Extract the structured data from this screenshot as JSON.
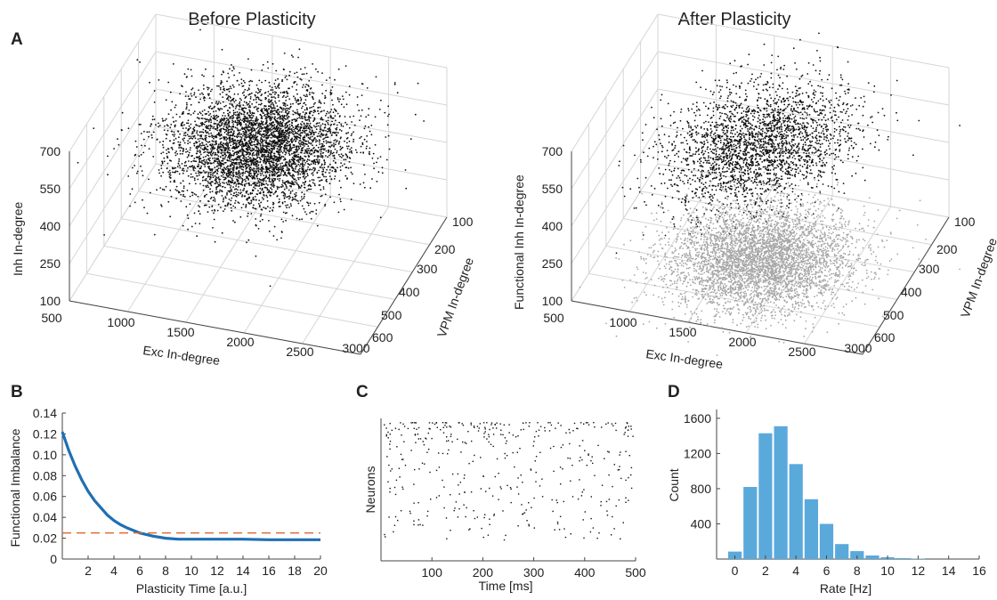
{
  "panels": {
    "A": "A",
    "B": "B",
    "C": "C",
    "D": "D"
  },
  "chart_data": [
    {
      "id": "A-before",
      "type": "scatter",
      "title": "Before Plasticity",
      "xlabel": "Exc In-degree",
      "ylabel": "VPM In-degree",
      "zlabel": "Inh In-degree",
      "x_ticks": [
        "500",
        "1000",
        "1500",
        "2000",
        "2500",
        "3000"
      ],
      "y_ticks": [
        "100",
        "200",
        "300",
        "400",
        "500",
        "600"
      ],
      "z_ticks": [
        "100",
        "250",
        "400",
        "550",
        "700"
      ],
      "xlim": [
        500,
        3000
      ],
      "ylim": [
        100,
        600
      ],
      "zlim": [
        100,
        700
      ],
      "grid": true,
      "series": [
        {
          "color": "#111111",
          "points": 4500,
          "center": [
            1750,
            350,
            550
          ],
          "spread": [
            370,
            95,
            55
          ]
        }
      ]
    },
    {
      "id": "A-after",
      "type": "scatter",
      "title": "After Plasticity",
      "xlabel": "Exc In-degree",
      "ylabel": "VPM In-degree",
      "zlabel": "Functional Inh In-degree",
      "x_ticks": [
        "500",
        "1000",
        "1500",
        "2000",
        "2500"
      ],
      "x_tick_end": "3000",
      "y_ticks": [
        "100",
        "200",
        "300",
        "400",
        "500",
        "600"
      ],
      "z_ticks": [
        "100",
        "250",
        "400",
        "550",
        "700"
      ],
      "xlim": [
        500,
        3000
      ],
      "ylim": [
        100,
        600
      ],
      "zlim": [
        100,
        700
      ],
      "grid": true,
      "series": [
        {
          "color": "#111111",
          "points": 2600,
          "projection": "plane",
          "center": [
            1750,
            350,
            620
          ],
          "spread": [
            370,
            95,
            0
          ]
        },
        {
          "color": "#a6a6a6",
          "points": 4500,
          "projection": "floor",
          "center": [
            1750,
            350,
            100
          ],
          "spread": [
            370,
            95,
            0
          ]
        }
      ]
    },
    {
      "id": "B",
      "type": "line",
      "xlabel": "Plasticity Time [a.u.]",
      "ylabel": "Functional Imbalance",
      "x_ticks": [
        "2",
        "4",
        "6",
        "8",
        "10",
        "12",
        "14",
        "16",
        "18",
        "20"
      ],
      "y_ticks": [
        "0",
        "0.02",
        "0.04",
        "0.06",
        "0.08",
        "0.10",
        "0.12",
        "0.14"
      ],
      "xlim": [
        0,
        20
      ],
      "ylim": [
        0,
        0.14
      ],
      "series": [
        {
          "color": "#1f6fb4",
          "x": [
            0,
            0.5,
            1,
            1.5,
            2,
            2.5,
            3,
            3.5,
            4,
            4.5,
            5,
            6,
            7,
            8,
            9,
            10,
            12,
            14,
            16,
            18,
            20
          ],
          "values": [
            0.122,
            0.104,
            0.089,
            0.076,
            0.065,
            0.056,
            0.049,
            0.042,
            0.037,
            0.033,
            0.03,
            0.025,
            0.022,
            0.02,
            0.019,
            0.019,
            0.019,
            0.019,
            0.0185,
            0.0185,
            0.0185
          ]
        },
        {
          "color": "#e0662e",
          "style": "dashed",
          "x": [
            0,
            20
          ],
          "values": [
            0.025,
            0.025
          ]
        }
      ]
    },
    {
      "id": "C",
      "type": "scatter",
      "xlabel": "Time [ms]",
      "ylabel": "Neurons",
      "x_ticks": [
        "100",
        "200",
        "300",
        "400",
        "500"
      ],
      "xlim": [
        0,
        500
      ],
      "series": [
        {
          "color": "#111111",
          "points": 420
        }
      ]
    },
    {
      "id": "D",
      "type": "bar",
      "xlabel": "Rate [Hz]",
      "ylabel": "Count",
      "x_ticks": [
        "0",
        "2",
        "4",
        "6",
        "8",
        "10",
        "12",
        "14",
        "16"
      ],
      "y_ticks": [
        "400",
        "800",
        "1200",
        "1600"
      ],
      "xlim": [
        -1.2,
        16
      ],
      "ylim": [
        0,
        1700
      ],
      "bar_color": "#5aa9db",
      "bin_width": 1,
      "bin_starts": [
        -0.5,
        0.5,
        1.5,
        2.5,
        3.5,
        4.5,
        5.5,
        6.5,
        7.5,
        8.5,
        9.5,
        10.5,
        11.5
      ],
      "values": [
        85,
        820,
        1430,
        1510,
        1080,
        680,
        400,
        170,
        90,
        40,
        20,
        10,
        5
      ]
    }
  ]
}
